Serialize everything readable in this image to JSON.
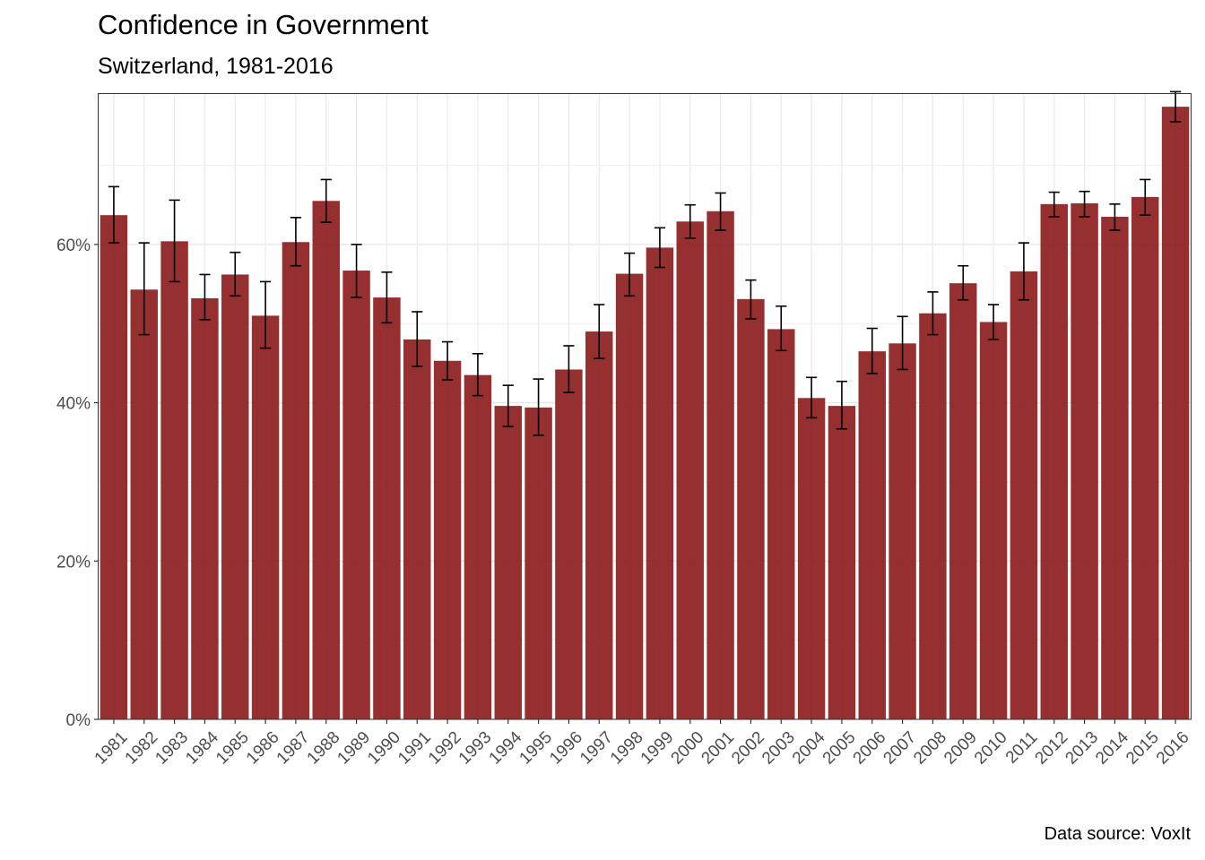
{
  "title": "Confidence in Government",
  "subtitle": "Switzerland, 1981-2016",
  "caption": "Data source: VoxIt",
  "chart_data": {
    "type": "bar",
    "title": "Confidence in Government",
    "subtitle": "Switzerland, 1981-2016",
    "xlabel": "",
    "ylabel": "",
    "ylim": [
      0,
      79
    ],
    "yticks": [
      0,
      20,
      40,
      60
    ],
    "ytick_labels": [
      "0%",
      "20%",
      "40%",
      "60%"
    ],
    "grid": true,
    "bar_color": "#8b1a1a",
    "error_bar_color": "#000000",
    "categories": [
      "1981",
      "1982",
      "1983",
      "1984",
      "1985",
      "1986",
      "1987",
      "1988",
      "1989",
      "1990",
      "1991",
      "1992",
      "1993",
      "1994",
      "1995",
      "1996",
      "1997",
      "1998",
      "1999",
      "2000",
      "2001",
      "2002",
      "2003",
      "2004",
      "2005",
      "2006",
      "2007",
      "2008",
      "2009",
      "2010",
      "2011",
      "2012",
      "2013",
      "2014",
      "2015",
      "2016"
    ],
    "values": [
      63.7,
      54.3,
      60.4,
      53.2,
      56.2,
      51.0,
      60.3,
      65.5,
      56.7,
      53.3,
      48.0,
      45.3,
      43.5,
      39.6,
      39.4,
      44.2,
      49.0,
      56.3,
      59.6,
      62.9,
      64.2,
      53.1,
      49.3,
      40.6,
      39.6,
      46.5,
      47.5,
      51.3,
      55.1,
      50.2,
      56.6,
      65.1,
      65.2,
      63.5,
      66.0,
      77.4
    ],
    "error_low": [
      60.2,
      48.6,
      55.3,
      50.5,
      53.5,
      46.9,
      57.3,
      62.8,
      53.3,
      50.1,
      44.6,
      42.9,
      40.9,
      37.0,
      35.9,
      41.3,
      45.6,
      53.5,
      57.1,
      60.8,
      61.8,
      50.6,
      46.6,
      38.1,
      36.7,
      43.7,
      44.2,
      48.6,
      53.0,
      48.0,
      53.0,
      63.5,
      63.5,
      61.8,
      63.7,
      75.5
    ],
    "error_high": [
      67.3,
      60.2,
      65.6,
      56.2,
      59.0,
      55.3,
      63.4,
      68.2,
      60.0,
      56.5,
      51.5,
      47.7,
      46.2,
      42.2,
      43.0,
      47.2,
      52.4,
      58.9,
      62.1,
      65.0,
      66.5,
      55.5,
      52.2,
      43.2,
      42.7,
      49.4,
      50.9,
      54.0,
      57.3,
      52.4,
      60.2,
      66.6,
      66.7,
      65.1,
      68.2,
      79.3
    ]
  }
}
